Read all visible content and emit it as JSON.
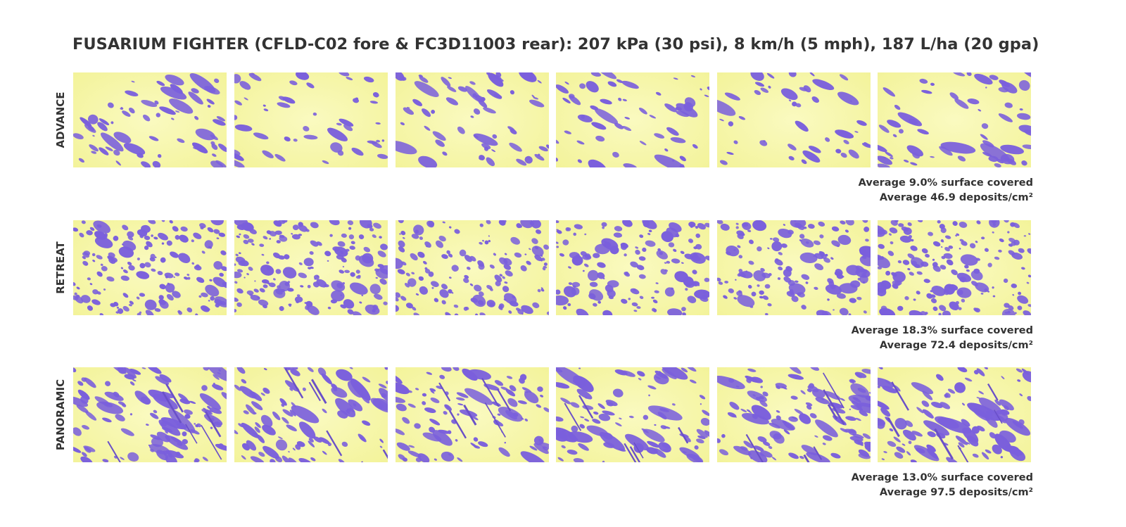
{
  "title": "FUSARIUM FIGHTER (CFLD-C02 fore & FC3D11003 rear): 207 kPa (30 psi), 8 km/h (5 mph), 187 L/ha (20 gpa)",
  "rows": [
    {
      "label": "ADVANCE",
      "coverage": "Average 9.0% surface covered",
      "deposits": "Average 46.9 deposits/cm²"
    },
    {
      "label": "RETREAT",
      "coverage": "Average 18.3% surface covered",
      "deposits": "Average 72.4 deposits/cm²"
    },
    {
      "label": "PANORAMIC",
      "coverage": "Average 13.0% surface covered",
      "deposits": "Average 97.5 deposits/cm²"
    }
  ]
}
